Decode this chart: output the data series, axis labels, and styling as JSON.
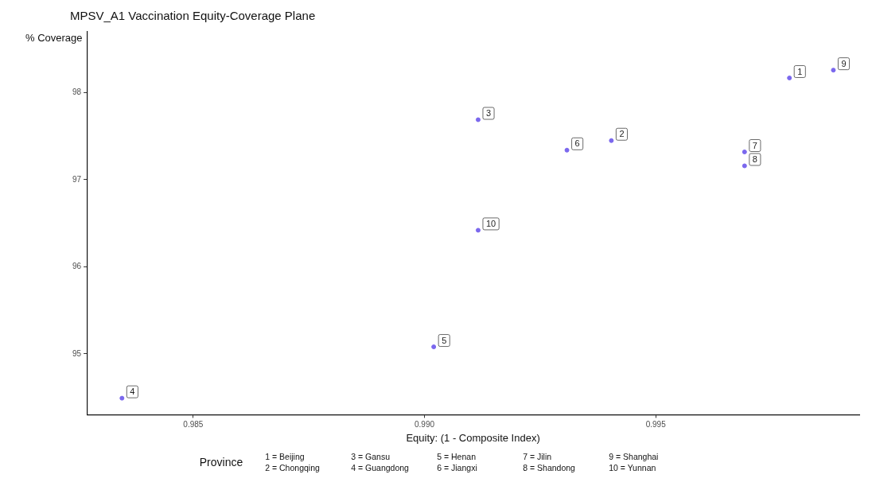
{
  "chart_data": {
    "type": "scatter",
    "title": "MPSV_A1 Vaccination Equity-Coverage Plane",
    "xlabel": "Equity: (1 - Composite Index)",
    "ylabel": "% Coverage",
    "legend_title": "Province",
    "x": [
      0.99789,
      0.99404,
      0.99116,
      0.98346,
      0.9902,
      0.99308,
      0.99692,
      0.99692,
      0.99884,
      0.99116
    ],
    "series": [
      {
        "color": "#7b68ee",
        "values": [
          98.17,
          97.45,
          97.69,
          94.49,
          95.08,
          97.34,
          97.32,
          97.16,
          98.26,
          96.42
        ]
      }
    ],
    "xlim": [
      0.9827,
      0.9994
    ],
    "ylim": [
      94.3,
      98.7
    ],
    "xticks": [
      {
        "value": 0.985,
        "label": "0.985"
      },
      {
        "value": 0.99,
        "label": "0.990"
      },
      {
        "value": 0.995,
        "label": "0.995"
      }
    ],
    "yticks": [
      95,
      96,
      97,
      98
    ],
    "grid": false,
    "marker": "circle",
    "annotations": [
      {
        "text": "1",
        "x": 0.99789,
        "y": 98.17
      },
      {
        "text": "2",
        "x": 0.99404,
        "y": 97.45
      },
      {
        "text": "3",
        "x": 0.99116,
        "y": 97.69
      },
      {
        "text": "4",
        "x": 0.98346,
        "y": 94.49
      },
      {
        "text": "5",
        "x": 0.9902,
        "y": 95.08
      },
      {
        "text": "6",
        "x": 0.99308,
        "y": 97.34
      },
      {
        "text": "7",
        "x": 0.99692,
        "y": 97.32
      },
      {
        "text": "8",
        "x": 0.99692,
        "y": 97.16
      },
      {
        "text": "9",
        "x": 0.99884,
        "y": 98.26
      },
      {
        "text": "10",
        "x": 0.99116,
        "y": 96.42
      },
      "1 = Beijing",
      "2 = Chongqing",
      "3 = Gansu",
      "4 = Guangdong",
      "5 = Henan",
      "6 = Jiangxi",
      "7 = Jilin",
      "8 = Shandong",
      "9 = Shanghai",
      "10 = Yunnan"
    ]
  }
}
